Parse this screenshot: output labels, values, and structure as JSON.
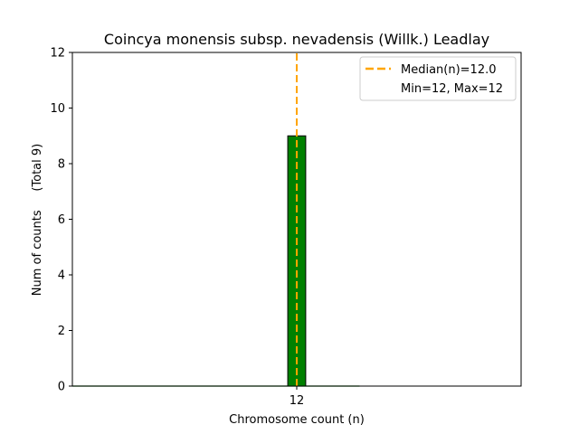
{
  "chart_data": {
    "type": "bar",
    "title": "Coincya monensis subsp. nevadensis (Willk.) Leadlay",
    "xlabel": "Chromosome count (n)",
    "ylabel": "Num of counts     (Total 9)",
    "xlim": [
      9.5,
      14.5
    ],
    "ylim": [
      0,
      12
    ],
    "yticks": [
      0,
      2,
      4,
      6,
      8,
      10,
      12
    ],
    "xticks": [
      12
    ],
    "bars": [
      {
        "x": 12,
        "value": 9,
        "width": 0.2,
        "color": "#008000"
      }
    ],
    "baseline": {
      "x_start": 9.5,
      "x_end": 12.7,
      "color": "#008000"
    },
    "median_line": {
      "x": 12.0,
      "color": "#FFA500",
      "style": "dashed"
    },
    "legend": {
      "position": "top-right",
      "entries": [
        "Median(n)=12.0",
        "Min=12, Max=12"
      ]
    },
    "grid": false
  }
}
